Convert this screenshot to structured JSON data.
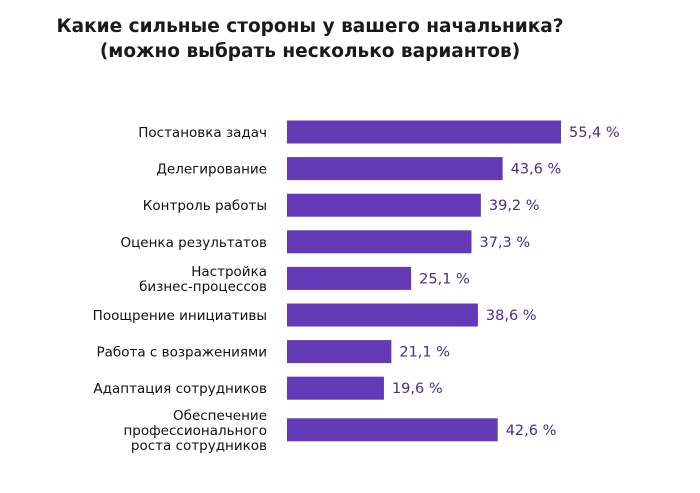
{
  "chart_data": {
    "type": "bar",
    "orientation": "horizontal",
    "title": "Какие сильные стороны у вашего начальника?",
    "subtitle": "(можно выбрать несколько вариантов)",
    "categories": [
      [
        "Постановка задач"
      ],
      [
        "Делегирование"
      ],
      [
        "Контроль работы"
      ],
      [
        "Оценка результатов"
      ],
      [
        "Настройка",
        "бизнес-процессов"
      ],
      [
        "Поощрение инициативы"
      ],
      [
        "Работа с возражениями"
      ],
      [
        "Адаптация сотрудников"
      ],
      [
        "Обеспечение",
        "профессионального",
        "роста сотрудников"
      ]
    ],
    "values": [
      55.4,
      43.6,
      39.2,
      37.3,
      25.1,
      38.6,
      21.1,
      19.6,
      42.6
    ],
    "value_labels": [
      "55,4 %",
      "43,6 %",
      "39,2 %",
      "37,3 %",
      "25,1 %",
      "38,6 %",
      "21,1 %",
      "19,6 %",
      "42,6 %"
    ],
    "xlabel": "",
    "ylabel": "",
    "grid": false,
    "colors": {
      "bar": "#6339b5",
      "value_text": "#4a2d8c"
    }
  }
}
